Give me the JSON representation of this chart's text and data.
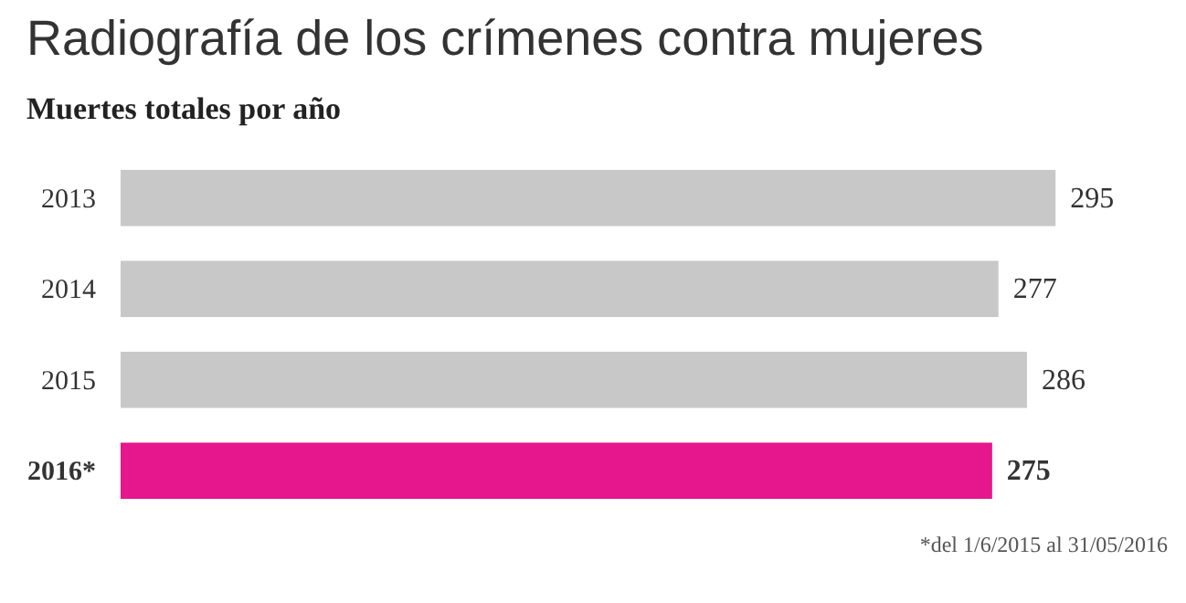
{
  "chart_data": {
    "type": "bar",
    "orientation": "horizontal",
    "title": "Radiografía de los crímenes contra mujeres",
    "subtitle": "Muertes totales por año",
    "categories": [
      "2013",
      "2014",
      "2015",
      "2016*"
    ],
    "values": [
      295,
      277,
      286,
      275
    ],
    "colors": [
      "#c8c8c8",
      "#c8c8c8",
      "#c8c8c8",
      "#e6168c"
    ],
    "data_labels": true,
    "grid": false,
    "annotations": [
      "*del 1/6/2015 al 31/05/2016"
    ]
  }
}
